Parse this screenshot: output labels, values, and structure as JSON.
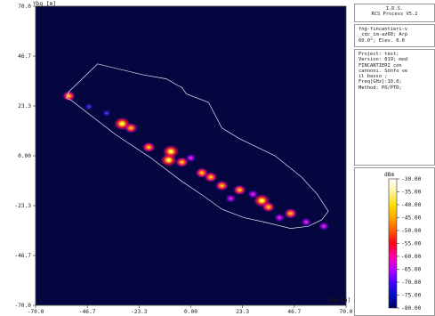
{
  "chart_data": {
    "type": "heatmap",
    "xlabel": "Xbg [m]",
    "ylabel": "Ybg [m]",
    "xlim": [
      -70.0,
      70.0
    ],
    "ylim": [
      -70.0,
      70.0
    ],
    "x_ticks": [
      "-70.0",
      "-46.7",
      "-23.3",
      "0.00",
      "23.3",
      "46.7",
      "70.0"
    ],
    "y_ticks": [
      "70.0",
      "46.7",
      "23.3",
      "0.00",
      "-23.3",
      "-46.7",
      "-70.0"
    ],
    "background_color": "#050540",
    "hull_outline": [
      [
        -42,
        43
      ],
      [
        -22,
        38
      ],
      [
        -11,
        36
      ],
      [
        -6,
        33
      ],
      [
        -4,
        32
      ],
      [
        -2,
        29
      ],
      [
        8,
        25
      ],
      [
        14,
        13
      ],
      [
        22,
        8
      ],
      [
        38,
        0
      ],
      [
        50,
        -10
      ],
      [
        57,
        -18
      ],
      [
        62,
        -26
      ],
      [
        59,
        -30
      ],
      [
        53,
        -33
      ],
      [
        45,
        -34
      ],
      [
        33,
        -31
      ],
      [
        24,
        -29
      ],
      [
        14,
        -25
      ],
      [
        6,
        -19
      ],
      [
        -4,
        -12
      ],
      [
        -18,
        -1
      ],
      [
        -34,
        10
      ],
      [
        -54,
        26
      ],
      [
        -56,
        27
      ],
      [
        -55,
        30
      ]
    ],
    "hot_spots": [
      {
        "x": -55,
        "y": 28,
        "level": -50
      },
      {
        "x": -31,
        "y": 15,
        "level": -42
      },
      {
        "x": -27,
        "y": 13,
        "level": -48
      },
      {
        "x": -19,
        "y": 4,
        "level": -45
      },
      {
        "x": -10,
        "y": -2,
        "level": -40
      },
      {
        "x": -9,
        "y": 2,
        "level": -38
      },
      {
        "x": -4,
        "y": -3,
        "level": -44
      },
      {
        "x": 5,
        "y": -8,
        "level": -48
      },
      {
        "x": 9,
        "y": -10,
        "level": -46
      },
      {
        "x": 14,
        "y": -14,
        "level": -50
      },
      {
        "x": 22,
        "y": -16,
        "level": -52
      },
      {
        "x": 28,
        "y": -18,
        "level": -54
      },
      {
        "x": 32,
        "y": -21,
        "level": -42
      },
      {
        "x": 35,
        "y": -24,
        "level": -44
      },
      {
        "x": 45,
        "y": -27,
        "level": -46
      },
      {
        "x": 52,
        "y": -31,
        "level": -58
      },
      {
        "x": 60,
        "y": -33,
        "level": -55
      },
      {
        "x": -38,
        "y": 20,
        "level": -66
      },
      {
        "x": -46,
        "y": 23,
        "level": -70
      },
      {
        "x": 0,
        "y": -1,
        "level": -60
      },
      {
        "x": 18,
        "y": -20,
        "level": -62
      },
      {
        "x": 40,
        "y": -29,
        "level": -60
      }
    ],
    "colorbar": {
      "unit": "dBm",
      "levels": [
        -30,
        -35,
        -40,
        -45,
        -50,
        -55,
        -60,
        -65,
        -70,
        -75,
        -80
      ],
      "labels": [
        "-30.00",
        "-35.00",
        "-40.00",
        "-45.00",
        "-50.00",
        "-55.00",
        "-60.00",
        "-65.00",
        "-70.00",
        "-75.00",
        "-80.00"
      ],
      "colors": [
        "#ffffff",
        "#fff4a0",
        "#ffe000",
        "#ffa800",
        "#ff5a00",
        "#ff0018",
        "#ff00a8",
        "#b800ff",
        "#4800ff",
        "#0010c8",
        "#000060"
      ]
    }
  },
  "info_panel": {
    "title_lines": [
      "I.D.S.",
      "RCS Process V5.2"
    ],
    "file_lines": [
      "fng-fincantieri-v",
      "_cdc_im-az60; Arp",
      "60.0°; Elev. 0.0"
    ],
    "project_lines": [
      "Project: test;",
      "Version: 019; mod",
      "FINCANTIERI con",
      "cannoni. Sonfo ve",
      "il basso ;",
      "Freq[GHz]:10.0;",
      "Method: PO/PTD;"
    ]
  }
}
